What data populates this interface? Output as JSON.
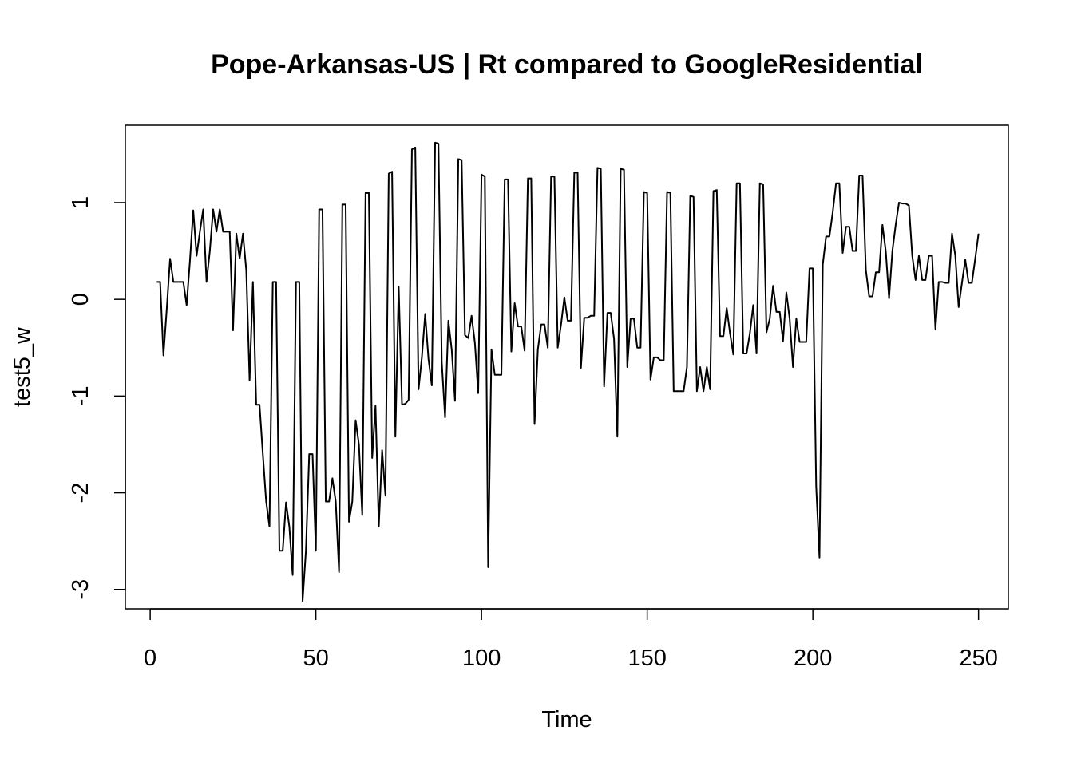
{
  "chart_data": {
    "type": "line",
    "title": "Pope-Arkansas-US | Rt compared to GoogleResidential",
    "xlabel": "Time",
    "ylabel": "test5_w",
    "xlim": [
      -7.5,
      259
    ],
    "ylim": [
      -3.2,
      1.8
    ],
    "x_ticks": [
      0,
      50,
      100,
      150,
      200,
      250
    ],
    "y_ticks": [
      -3,
      -2,
      -1,
      0,
      1
    ],
    "grid": false,
    "series": [
      {
        "x_start": 2,
        "values": [
          0.18,
          0.18,
          -0.58,
          -0.1,
          0.42,
          0.18,
          0.18,
          0.18,
          0.18,
          -0.06,
          0.4,
          0.92,
          0.45,
          0.7,
          0.93,
          0.18,
          0.5,
          0.93,
          0.7,
          0.93,
          0.7,
          0.7,
          0.7,
          -0.32,
          0.68,
          0.42,
          0.68,
          0.3,
          -0.84,
          0.18,
          -1.09,
          -1.09,
          -1.6,
          -2.09,
          -2.35,
          0.18,
          0.18,
          -2.6,
          -2.6,
          -2.1,
          -2.35,
          -2.85,
          0.18,
          0.18,
          -3.12,
          -2.6,
          -1.6,
          -1.6,
          -2.6,
          0.93,
          0.93,
          -2.09,
          -2.09,
          -1.85,
          -2.09,
          -2.82,
          0.98,
          0.98,
          -2.3,
          -2.09,
          -1.25,
          -1.5,
          -2.23,
          1.1,
          1.1,
          -1.64,
          -1.1,
          -2.35,
          -1.56,
          -2.03,
          1.3,
          1.32,
          -1.42,
          0.13,
          -1.09,
          -1.08,
          -1.04,
          1.55,
          1.57,
          -0.93,
          -0.6,
          -0.15,
          -0.62,
          -0.89,
          1.62,
          1.61,
          -0.65,
          -1.22,
          -0.22,
          -0.52,
          -1.05,
          1.45,
          1.44,
          -0.37,
          -0.4,
          -0.17,
          -0.45,
          -0.97,
          1.29,
          1.27,
          -2.77,
          -0.52,
          -0.78,
          -0.78,
          -0.78,
          1.24,
          1.24,
          -0.54,
          -0.04,
          -0.28,
          -0.28,
          -0.53,
          1.25,
          1.25,
          -1.29,
          -0.52,
          -0.26,
          -0.26,
          -0.5,
          1.27,
          1.27,
          -0.5,
          -0.26,
          0.02,
          -0.22,
          -0.22,
          1.31,
          1.31,
          -0.71,
          -0.19,
          -0.19,
          -0.17,
          -0.17,
          1.36,
          1.35,
          -0.9,
          -0.14,
          -0.14,
          -0.41,
          -1.42,
          1.35,
          1.34,
          -0.7,
          -0.2,
          -0.2,
          -0.5,
          -0.5,
          1.11,
          1.1,
          -0.83,
          -0.6,
          -0.6,
          -0.63,
          -0.63,
          1.11,
          1.1,
          -0.95,
          -0.95,
          -0.95,
          -0.95,
          -0.7,
          1.07,
          1.06,
          -0.95,
          -0.7,
          -0.95,
          -0.7,
          -0.93,
          1.12,
          1.13,
          -0.38,
          -0.38,
          -0.09,
          -0.35,
          -0.57,
          1.2,
          1.2,
          -0.56,
          -0.56,
          -0.35,
          -0.06,
          -0.56,
          1.2,
          1.19,
          -0.34,
          -0.2,
          0.14,
          -0.13,
          -0.13,
          -0.43,
          0.07,
          -0.2,
          -0.7,
          -0.2,
          -0.44,
          -0.44,
          -0.44,
          0.32,
          0.32,
          -1.93,
          -2.67,
          0.36,
          0.65,
          0.65,
          0.9,
          1.2,
          1.2,
          0.48,
          0.75,
          0.75,
          0.5,
          0.5,
          1.28,
          1.28,
          0.3,
          0.03,
          0.03,
          0.28,
          0.28,
          0.77,
          0.5,
          0.01,
          0.5,
          0.77,
          1.0,
          0.99,
          0.99,
          0.97,
          0.45,
          0.2,
          0.45,
          0.2,
          0.2,
          0.45,
          0.45,
          -0.31,
          0.18,
          0.18,
          0.17,
          0.17,
          0.68,
          0.45,
          -0.08,
          0.17,
          0.41,
          0.17,
          0.17,
          0.42,
          0.68
        ]
      }
    ]
  }
}
